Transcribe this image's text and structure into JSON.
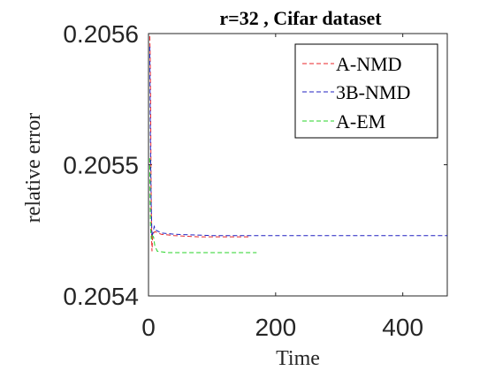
{
  "chart_data": {
    "type": "line",
    "title": "r=32 , Cifar dataset",
    "xlabel": "Time",
    "ylabel": "relative error",
    "xlim": [
      0,
      470
    ],
    "ylim": [
      0.2054,
      0.2056
    ],
    "xticks": [
      "0",
      "200",
      "400"
    ],
    "xtick_values": [
      0,
      200,
      400
    ],
    "yticks": [
      "0.2054",
      "0.2055",
      "0.2056"
    ],
    "ytick_values": [
      0.2054,
      0.2055,
      0.2056
    ],
    "grid": false,
    "legend_position": "top-right",
    "series": [
      {
        "name": "A-NMD",
        "color": "#e8262a",
        "dash": "dashed",
        "points": [
          [
            2,
            0.205598
          ],
          [
            2.6,
            0.205585
          ],
          [
            3.3,
            0.20555
          ],
          [
            4,
            0.20549
          ],
          [
            4.8,
            0.205445
          ],
          [
            5.5,
            0.205434
          ],
          [
            6.5,
            0.205445
          ],
          [
            8,
            0.205448
          ],
          [
            10,
            0.205449
          ],
          [
            20,
            0.205447
          ],
          [
            40,
            0.205446
          ],
          [
            80,
            0.205445
          ],
          [
            120,
            0.205445
          ],
          [
            160,
            0.205445
          ]
        ]
      },
      {
        "name": "3B-NMD",
        "color": "#2020c0",
        "dash": "dashed",
        "points": [
          [
            2,
            0.20559
          ],
          [
            3,
            0.20552
          ],
          [
            4.2,
            0.20547
          ],
          [
            5.5,
            0.205445
          ],
          [
            7,
            0.205448
          ],
          [
            9,
            0.205453
          ],
          [
            12,
            0.20545
          ],
          [
            20,
            0.205448
          ],
          [
            40,
            0.205447
          ],
          [
            100,
            0.205446
          ],
          [
            200,
            0.205446
          ],
          [
            300,
            0.205446
          ],
          [
            400,
            0.205446
          ],
          [
            470,
            0.205446
          ]
        ]
      },
      {
        "name": "A-EM",
        "color": "#27d327",
        "dash": "dashed",
        "points": [
          [
            2,
            0.205505
          ],
          [
            2.5,
            0.205475
          ],
          [
            3.2,
            0.205452
          ],
          [
            4.5,
            0.205443
          ],
          [
            6,
            0.205446
          ],
          [
            8,
            0.205445
          ],
          [
            10,
            0.205438
          ],
          [
            14,
            0.205434
          ],
          [
            30,
            0.205433
          ],
          [
            80,
            0.205433
          ],
          [
            140,
            0.205433
          ],
          [
            170,
            0.205433
          ]
        ]
      }
    ]
  }
}
